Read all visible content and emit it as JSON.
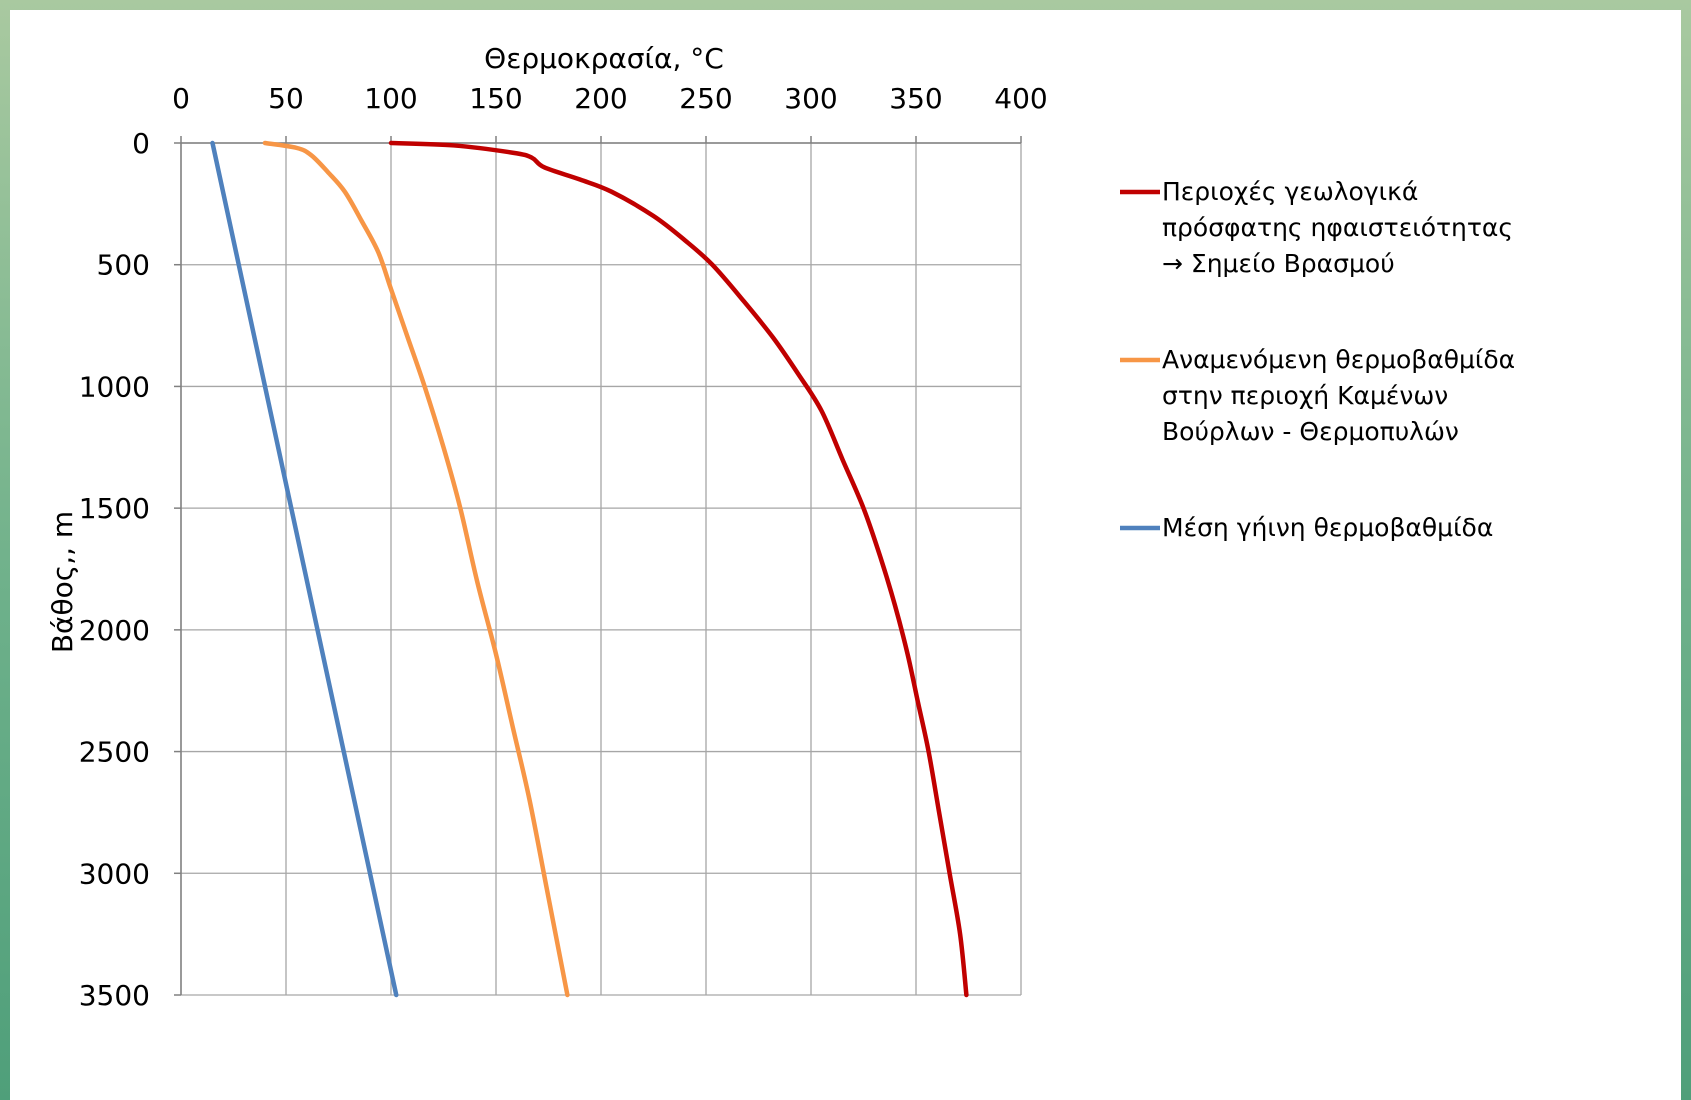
{
  "chart_data": {
    "type": "line",
    "title": "",
    "xlabel": "Θερμοκρασία, °C",
    "ylabel": "Βάθος,, m",
    "xlim": [
      0,
      400
    ],
    "ylim": [
      0,
      3500
    ],
    "y_inverted": true,
    "x_axis_position": "top",
    "x_ticks": [
      0,
      50,
      100,
      150,
      200,
      250,
      300,
      350,
      400
    ],
    "y_ticks": [
      0,
      500,
      1000,
      1500,
      2000,
      2500,
      3000,
      3500
    ],
    "x_tick_labels": [
      "0",
      "50",
      "100",
      "150",
      "200",
      "250",
      "300",
      "350",
      "400"
    ],
    "y_tick_labels": [
      "0",
      "500",
      "1000",
      "1500",
      "2000",
      "2500",
      "3000",
      "3500"
    ],
    "grid": true,
    "legend_position": "right",
    "series": [
      {
        "name": "Περιοχές γεωλογικά πρόσφατης ηφαιστειότητας → Σημείο Βρασμού",
        "legend_lines": [
          "Περιοχές γεωλογικά",
          "πρόσφατης ηφαιστειότητας",
          "→ Σημείο Βρασμού"
        ],
        "color": "#c00000",
        "points": [
          [
            100,
            0
          ],
          [
            130,
            10
          ],
          [
            158,
            40
          ],
          [
            167,
            60
          ],
          [
            173,
            100
          ],
          [
            190,
            150
          ],
          [
            205,
            200
          ],
          [
            225,
            300
          ],
          [
            240,
            400
          ],
          [
            253,
            500
          ],
          [
            268,
            650
          ],
          [
            282,
            800
          ],
          [
            294,
            950
          ],
          [
            305,
            1100
          ],
          [
            315,
            1300
          ],
          [
            325,
            1500
          ],
          [
            333,
            1700
          ],
          [
            340,
            1900
          ],
          [
            346,
            2100
          ],
          [
            351,
            2300
          ],
          [
            356,
            2500
          ],
          [
            361,
            2750
          ],
          [
            366,
            3000
          ],
          [
            371,
            3250
          ],
          [
            374,
            3500
          ]
        ]
      },
      {
        "name": "Αναμενόμενη θερμοβαθμίδα στην περιοχή Καμένων Βούρλων - Θερμοπυλών",
        "legend_lines": [
          "Αναμενόμενη θερμοβαθμίδα",
          "στην περιοχή Καμένων",
          "Βούρλων - Θερμοπυλών"
        ],
        "color": "#f79646",
        "points": [
          [
            40,
            0
          ],
          [
            55,
            20
          ],
          [
            62,
            50
          ],
          [
            70,
            120
          ],
          [
            78,
            200
          ],
          [
            86,
            320
          ],
          [
            94,
            450
          ],
          [
            100,
            600
          ],
          [
            108,
            800
          ],
          [
            116,
            1000
          ],
          [
            125,
            1250
          ],
          [
            133,
            1500
          ],
          [
            141,
            1800
          ],
          [
            150,
            2100
          ],
          [
            158,
            2400
          ],
          [
            166,
            2700
          ],
          [
            175,
            3100
          ],
          [
            184,
            3500
          ]
        ]
      },
      {
        "name": "Μέση γήινη θερμοβαθμίδα",
        "legend_lines": [
          "Μέση γήινη θερμοβαθμίδα"
        ],
        "color": "#4f81bd",
        "points": [
          [
            15,
            0
          ],
          [
            102.5,
            3500
          ]
        ]
      }
    ]
  }
}
